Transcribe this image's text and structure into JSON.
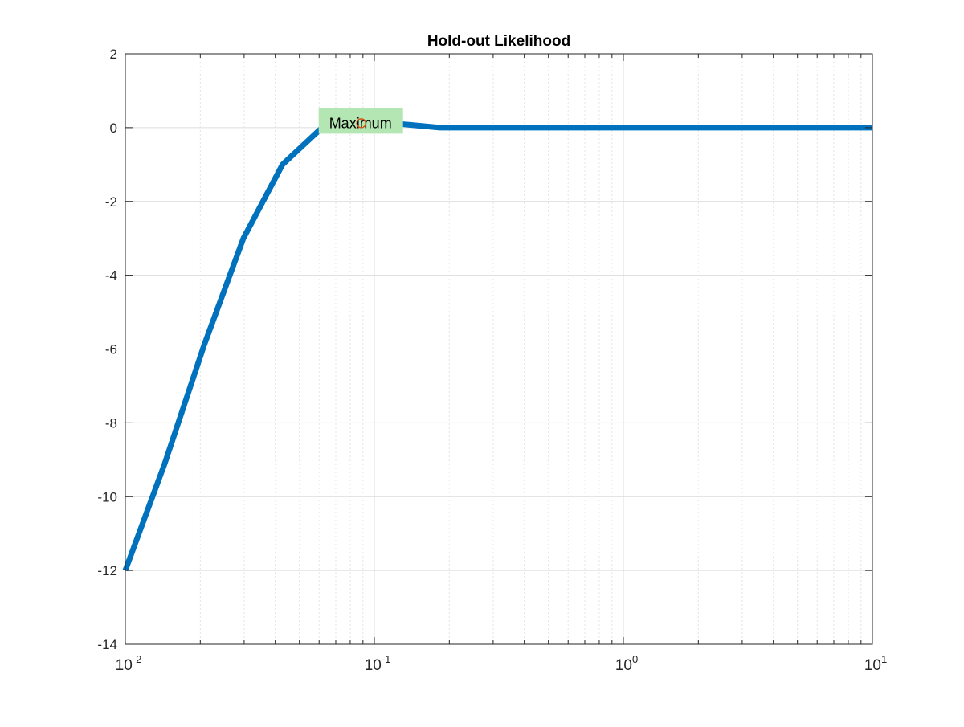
{
  "chart_data": {
    "type": "line",
    "title": "Hold-out Likelihood",
    "xlabel": "",
    "ylabel": "",
    "xscale": "log",
    "xlim": [
      0.01,
      10
    ],
    "ylim": [
      -14,
      2
    ],
    "grid": "on (major and minor)",
    "x_ticks": [
      {
        "base": "10",
        "exp": "-2",
        "value": 0.01
      },
      {
        "base": "10",
        "exp": "-1",
        "value": 0.1
      },
      {
        "base": "10",
        "exp": "0",
        "value": 1
      },
      {
        "base": "10",
        "exp": "1",
        "value": 10
      }
    ],
    "y_ticks": [
      "2",
      "0",
      "-2",
      "-4",
      "-6",
      "-8",
      "-10",
      "-12",
      "-14"
    ],
    "series": [
      {
        "color": "#0072bd",
        "x": [
          0.01,
          0.0144,
          0.0207,
          0.0298,
          0.0428,
          0.0616,
          0.0886,
          0.1274,
          0.1833,
          0.2637,
          0.3793,
          0.5456,
          0.7848,
          1.1288,
          1.6238,
          2.3357,
          3.3598,
          4.8329,
          6.9519,
          10
        ],
        "y": [
          -12,
          -9.1,
          -5.9,
          -3.0,
          -1.0,
          0.0,
          0.12,
          0.1,
          0.0,
          0.0,
          0.0,
          0.0,
          0.0,
          0.0,
          0.0,
          0.0,
          0.0,
          0.0,
          0.0,
          0.0
        ]
      }
    ],
    "annotation": {
      "text": "Maximum",
      "x": 0.0886,
      "y": 0.12,
      "background": "#b3e6b3",
      "marker": "circle",
      "marker_color": "#d95319"
    }
  }
}
